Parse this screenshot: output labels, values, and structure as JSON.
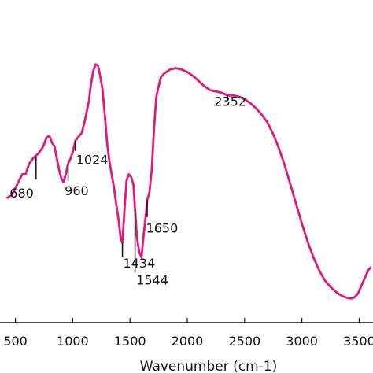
{
  "chart_data": {
    "type": "line",
    "title": "",
    "xlabel": "Wavenumber (cm-1)",
    "ylabel": "",
    "xlim": [
      400,
      3600
    ],
    "ylim": [
      0,
      100
    ],
    "grid": false,
    "line_color": "#e0197a",
    "x_ticks": [
      {
        "value": 500,
        "label": "500"
      },
      {
        "value": 1000,
        "label": "1000"
      },
      {
        "value": 1500,
        "label": "1500"
      },
      {
        "value": 2000,
        "label": "2000"
      },
      {
        "value": 2500,
        "label": "2500"
      },
      {
        "value": 3000,
        "label": "3000"
      },
      {
        "value": 3500,
        "label": "3500"
      }
    ],
    "series": [
      {
        "name": "",
        "x": [
          430,
          470,
          520,
          560,
          590,
          620,
          660,
          700,
          740,
          770,
          790,
          800,
          820,
          840,
          860,
          880,
          900,
          920,
          940,
          960,
          980,
          1000,
          1024,
          1050,
          1080,
          1110,
          1140,
          1160,
          1180,
          1200,
          1220,
          1240,
          1260,
          1280,
          1300,
          1320,
          1340,
          1360,
          1380,
          1400,
          1420,
          1434,
          1450,
          1470,
          1490,
          1510,
          1530,
          1544,
          1560,
          1580,
          1600,
          1620,
          1640,
          1650,
          1670,
          1690,
          1710,
          1730,
          1750,
          1770,
          1800,
          1850,
          1900,
          1950,
          2000,
          2050,
          2100,
          2150,
          2200,
          2250,
          2300,
          2352,
          2400,
          2450,
          2500,
          2550,
          2600,
          2650,
          2700,
          2750,
          2800,
          2850,
          2900,
          2950,
          3000,
          3050,
          3100,
          3150,
          3200,
          3250,
          3300,
          3350,
          3400,
          3430,
          3460,
          3490,
          3520,
          3550,
          3580,
          3600
        ],
        "y": [
          41.0,
          42.0,
          46.5,
          50.0,
          50.2,
          54.0,
          56.5,
          58.0,
          60.5,
          64.0,
          64.7,
          64.5,
          62.0,
          61.0,
          56.5,
          52.0,
          48.5,
          47.0,
          50.0,
          54.0,
          56.0,
          58.5,
          63.0,
          64.5,
          66.0,
          71.5,
          78.0,
          85.0,
          90.0,
          92.5,
          92.0,
          88.0,
          83.0,
          73.0,
          62.0,
          55.0,
          50.0,
          45.0,
          38.5,
          32.5,
          25.0,
          23.5,
          35.0,
          47.5,
          50.0,
          49.0,
          46.0,
          36.5,
          26.0,
          20.0,
          18.0,
          27.0,
          35.0,
          40.0,
          43.0,
          52.0,
          68.0,
          80.0,
          84.0,
          87.5,
          89.0,
          90.5,
          91.0,
          90.5,
          89.5,
          88.0,
          86.0,
          84.0,
          82.5,
          82.0,
          81.5,
          80.5,
          80.5,
          80.0,
          79.0,
          77.5,
          75.5,
          73.0,
          70.0,
          65.5,
          60.0,
          53.5,
          46.0,
          38.5,
          31.0,
          24.0,
          18.0,
          13.0,
          9.0,
          6.5,
          4.5,
          3.0,
          2.2,
          2.0,
          2.5,
          4.0,
          7.0,
          10.0,
          13.0,
          14.0
        ]
      }
    ],
    "peak_labels": [
      {
        "text": "680",
        "x": 680,
        "y": 56.7,
        "label_x": 450,
        "label_y": 41.0,
        "line_to": 48.0
      },
      {
        "text": "960",
        "x": 960,
        "y": 54.0,
        "label_x": 930,
        "label_y": 42.0,
        "line_to": 47.5
      },
      {
        "text": "1024",
        "x": 1024,
        "y": 63.0,
        "label_x": 1030,
        "label_y": 54.0,
        "line_to": 59.0
      },
      {
        "text": "1434",
        "x": 1434,
        "y": 23.5,
        "label_x": 1440,
        "label_y": 14.0,
        "line_to": 18.0
      },
      {
        "text": "1544",
        "x": 1544,
        "y": 36.5,
        "label_x": 1555,
        "label_y": 7.5,
        "line_to": 12.0
      },
      {
        "text": "1650",
        "x": 1650,
        "y": 40.0,
        "label_x": 1640,
        "label_y": 27.5,
        "line_to": 33.5
      },
      {
        "text": "2352",
        "x": 2352,
        "y": 80.5,
        "label_x": 2235,
        "label_y": 76.5,
        "line_to": 78.5
      }
    ]
  }
}
